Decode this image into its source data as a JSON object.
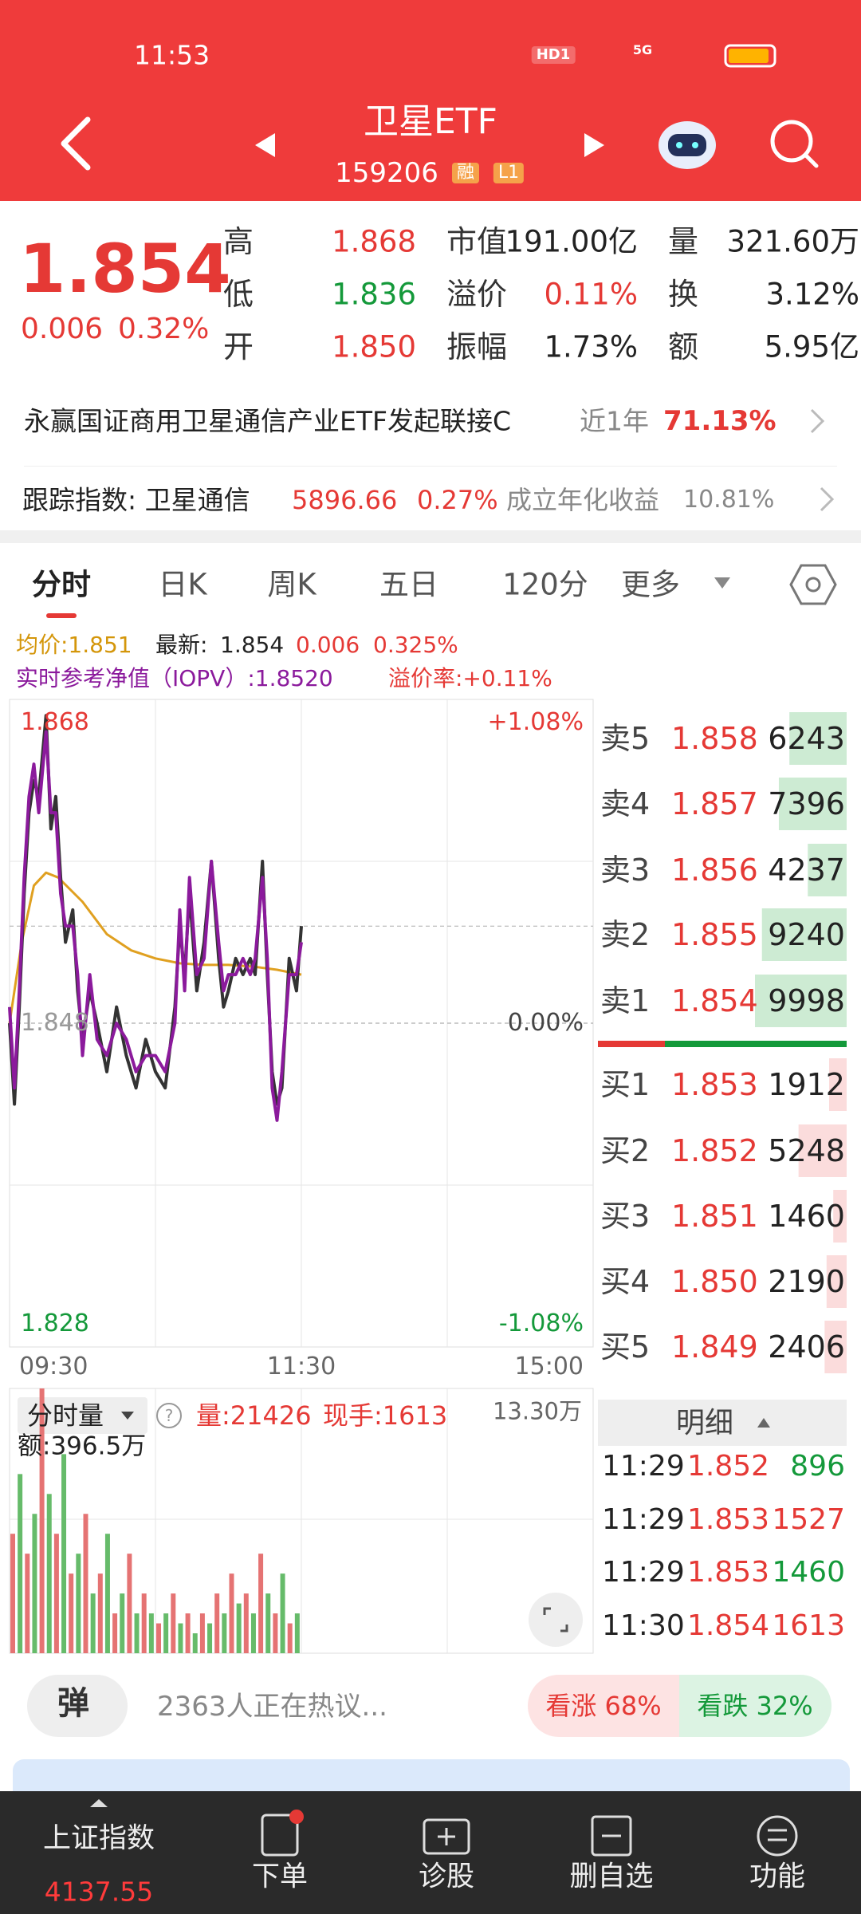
{
  "status_bar": {
    "time": "11:53",
    "hd": "HD1",
    "network": "5G"
  },
  "header": {
    "title": "卫星ETF",
    "code": "159206",
    "badge_margin": "融",
    "badge_level": "L1"
  },
  "quote": {
    "price": "1.854",
    "change": "0.006",
    "change_pct": "0.32%",
    "stats": [
      {
        "label": "高",
        "value": "1.868",
        "color": "#e53935"
      },
      {
        "label": "低",
        "value": "1.836",
        "color": "#14993a"
      },
      {
        "label": "开",
        "value": "1.850",
        "color": "#e53935"
      },
      {
        "label": "市值",
        "value": "191.00亿",
        "color": "#222222"
      },
      {
        "label": "溢价",
        "value": "0.11%",
        "color": "#e53935"
      },
      {
        "label": "振幅",
        "value": "1.73%",
        "color": "#222222"
      },
      {
        "label": "量",
        "value": "321.60万",
        "color": "#222222"
      },
      {
        "label": "换",
        "value": "3.12%",
        "color": "#222222"
      },
      {
        "label": "额",
        "value": "5.95亿",
        "color": "#222222"
      }
    ]
  },
  "fund_link": {
    "name": "永赢国证商用卫星通信产业ETF发起联接C",
    "period": "近1年",
    "return": "71.13%"
  },
  "tracking": {
    "label": "跟踪指数: 卫星通信",
    "value": "5896.66",
    "change": "0.27%",
    "since_label": "成立年化收益",
    "since_value": "10.81%"
  },
  "tabs": [
    "分时",
    "日K",
    "周K",
    "五日",
    "120分",
    "更多"
  ],
  "info": {
    "avg": "均价:1.851",
    "latest_label": "最新:",
    "latest": 1.854,
    "change": "0.006",
    "change_pct": "0.325%",
    "iopv": "实时参考净值（IOPV）:1.8520",
    "premium": "溢价率:+0.11%"
  },
  "intraday": {
    "type": "line",
    "xlim": [
      0,
      240
    ],
    "xticks": [
      {
        "value": 0,
        "label": "09:30"
      },
      {
        "value": 120,
        "label": "11:30"
      },
      {
        "value": 240,
        "label": "15:00"
      }
    ],
    "ylim": [
      1.828,
      1.868
    ],
    "yticks": [
      1.868,
      1.848,
      1.828
    ],
    "y2lim": [
      -1.08,
      1.08
    ],
    "y2ticks": [
      {
        "value": 1.08,
        "label": "+1.08%"
      },
      {
        "value": 0,
        "label": "0.00%"
      },
      {
        "value": -1.08,
        "label": "-1.08%"
      }
    ],
    "price": {
      "color": "#333333",
      "x": [
        0,
        2,
        4,
        6,
        8,
        10,
        12,
        15,
        17,
        19,
        21,
        23,
        26,
        28,
        30,
        33,
        36,
        40,
        44,
        48,
        52,
        56,
        60,
        64,
        68,
        70,
        72,
        74,
        77,
        80,
        83,
        86,
        88,
        90,
        93,
        96,
        99,
        101,
        104,
        106,
        108,
        110,
        112,
        115,
        118,
        120
      ],
      "values": [
        1.848,
        1.843,
        1.849,
        1.856,
        1.861,
        1.863,
        1.862,
        1.867,
        1.86,
        1.862,
        1.857,
        1.853,
        1.855,
        1.85,
        1.847,
        1.85,
        1.848,
        1.845,
        1.849,
        1.846,
        1.844,
        1.847,
        1.845,
        1.844,
        1.849,
        1.854,
        1.851,
        1.856,
        1.85,
        1.853,
        1.858,
        1.852,
        1.849,
        1.85,
        1.852,
        1.851,
        1.852,
        1.851,
        1.858,
        1.851,
        1.845,
        1.843,
        1.844,
        1.852,
        1.85,
        1.854
      ]
    },
    "iopv": {
      "color": "#8b1a9c",
      "x": [
        0,
        2,
        4,
        6,
        8,
        10,
        12,
        15,
        17,
        19,
        21,
        23,
        26,
        28,
        30,
        33,
        36,
        40,
        44,
        48,
        52,
        56,
        60,
        64,
        68,
        70,
        72,
        74,
        77,
        80,
        83,
        86,
        88,
        90,
        93,
        96,
        99,
        101,
        104,
        106,
        108,
        110,
        112,
        115,
        118,
        120
      ],
      "values": [
        1.849,
        1.844,
        1.85,
        1.857,
        1.862,
        1.864,
        1.861,
        1.866,
        1.861,
        1.861,
        1.856,
        1.854,
        1.854,
        1.851,
        1.846,
        1.851,
        1.847,
        1.846,
        1.848,
        1.847,
        1.845,
        1.846,
        1.846,
        1.845,
        1.848,
        1.855,
        1.85,
        1.857,
        1.851,
        1.852,
        1.858,
        1.853,
        1.85,
        1.851,
        1.851,
        1.852,
        1.851,
        1.852,
        1.857,
        1.852,
        1.844,
        1.842,
        1.845,
        1.851,
        1.851,
        1.853
      ]
    },
    "avg": {
      "color": "#e0a020",
      "x": [
        0,
        5,
        10,
        15,
        20,
        30,
        40,
        50,
        60,
        70,
        80,
        90,
        100,
        110,
        120
      ],
      "values": [
        1.848,
        1.853,
        1.8565,
        1.8573,
        1.857,
        1.8555,
        1.8535,
        1.8525,
        1.852,
        1.8517,
        1.8516,
        1.8516,
        1.8515,
        1.8513,
        1.851
      ]
    }
  },
  "volume": {
    "type": "bar",
    "header": "分时量",
    "qty": "量:21426",
    "hand": "现手:1613",
    "amount": "额:396.5万",
    "up_color": "#e57373",
    "down_color": "#66bb6a",
    "ylim": [
      0,
      13.3
    ],
    "yticks": [
      {
        "value": 13.3,
        "label": "13.30万"
      }
    ],
    "x": [
      0,
      3,
      6,
      9,
      12,
      15,
      18,
      21,
      24,
      27,
      30,
      33,
      36,
      39,
      42,
      45,
      48,
      51,
      54,
      57,
      60,
      63,
      66,
      69,
      72,
      75,
      78,
      81,
      84,
      87,
      90,
      93,
      96,
      99,
      102,
      105,
      108,
      111,
      114,
      117
    ],
    "values": [
      6,
      9,
      5,
      7,
      13.3,
      8,
      6,
      10,
      4,
      5,
      7,
      3,
      4,
      6,
      2,
      3,
      5,
      2,
      3,
      2,
      1.5,
      2,
      3,
      1.5,
      2,
      1,
      2,
      1.5,
      3,
      2,
      4,
      2.5,
      3,
      2,
      5,
      3,
      2,
      4,
      1.5,
      2
    ]
  },
  "order_book": {
    "sell": [
      {
        "label": "卖5",
        "price": "1.858",
        "volume": 6243
      },
      {
        "label": "卖4",
        "price": "1.857",
        "volume": 7396
      },
      {
        "label": "卖3",
        "price": "1.856",
        "volume": 4237
      },
      {
        "label": "卖2",
        "price": "1.855",
        "volume": 9240
      },
      {
        "label": "卖1",
        "price": "1.854",
        "volume": 9998
      }
    ],
    "buy": [
      {
        "label": "买1",
        "price": "1.853",
        "volume": 1912
      },
      {
        "label": "买2",
        "price": "1.852",
        "volume": 5248
      },
      {
        "label": "买3",
        "price": "1.851",
        "volume": 1460
      },
      {
        "label": "买4",
        "price": "1.850",
        "volume": 2190
      },
      {
        "label": "买5",
        "price": "1.849",
        "volume": 2406
      }
    ]
  },
  "details": {
    "title": "明细",
    "rows": [
      {
        "time": "11:29",
        "price": "1.852",
        "volume": "896",
        "color": "#14993a"
      },
      {
        "time": "11:29",
        "price": "1.853",
        "volume": "1527",
        "color": "#e53935"
      },
      {
        "time": "11:29",
        "price": "1.853",
        "volume": "1460",
        "color": "#14993a"
      },
      {
        "time": "11:30",
        "price": "1.854",
        "volume": "1613",
        "color": "#e53935"
      }
    ]
  },
  "discussion": {
    "button": "弹",
    "text": "2363人正在热议...",
    "bull": "看涨 68%",
    "bear": "看跌 32%"
  },
  "nav": [
    {
      "label": "上证指数",
      "value": "4137.55"
    },
    {
      "label": "下单"
    },
    {
      "label": "诊股"
    },
    {
      "label": "删自选"
    },
    {
      "label": "功能"
    }
  ]
}
